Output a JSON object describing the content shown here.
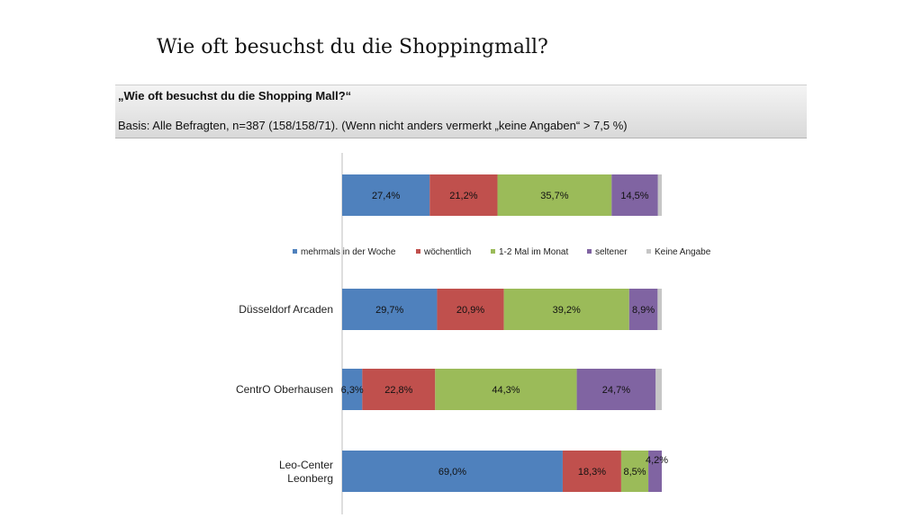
{
  "slide": {
    "title": "Wie oft besuchst du die Shoppingmall?"
  },
  "header": {
    "question": "„Wie oft besuchst du die Shopping Mall?“",
    "basis": "Basis: Alle Befragten, n=387 (158/158/71). (Wenn nicht anders vermerkt „keine Angaben“ > 7,5 %)"
  },
  "chart_data": {
    "type": "bar",
    "orientation": "horizontal",
    "stacked": true,
    "categories": [
      "",
      "Düsseldorf Arcaden",
      "CentrO Oberhausen",
      "Leo-Center Leonberg"
    ],
    "series": [
      {
        "name": "mehrmals in der Woche",
        "color": "#4f81bd",
        "values": [
          27.4,
          29.7,
          6.3,
          69.0
        ],
        "labels": [
          "27,4%",
          "29,7%",
          "6,3%",
          "69,0%"
        ]
      },
      {
        "name": "wöchentlich",
        "color": "#c0504d",
        "values": [
          21.2,
          20.9,
          22.8,
          18.3
        ],
        "labels": [
          "21,2%",
          "20,9%",
          "22,8%",
          "18,3%"
        ]
      },
      {
        "name": "1-2 Mal im Monat",
        "color": "#9bbb59",
        "values": [
          35.7,
          39.2,
          44.3,
          8.5
        ],
        "labels": [
          "35,7%",
          "39,2%",
          "44,3%",
          "8,5%"
        ]
      },
      {
        "name": "seltener",
        "color": "#8064a2",
        "values": [
          14.5,
          8.9,
          24.7,
          4.2
        ],
        "labels": [
          "14,5%",
          "8,9%",
          "24,7%",
          "4,2%"
        ]
      },
      {
        "name": "Keine Angabe",
        "color": "#c6c6c6",
        "values": [
          1.2,
          1.3,
          1.9,
          0.0
        ],
        "labels": [
          "",
          "",
          "",
          ""
        ]
      }
    ],
    "xlim": [
      0,
      100
    ],
    "legend_position": "between-first-and-second-bar"
  }
}
